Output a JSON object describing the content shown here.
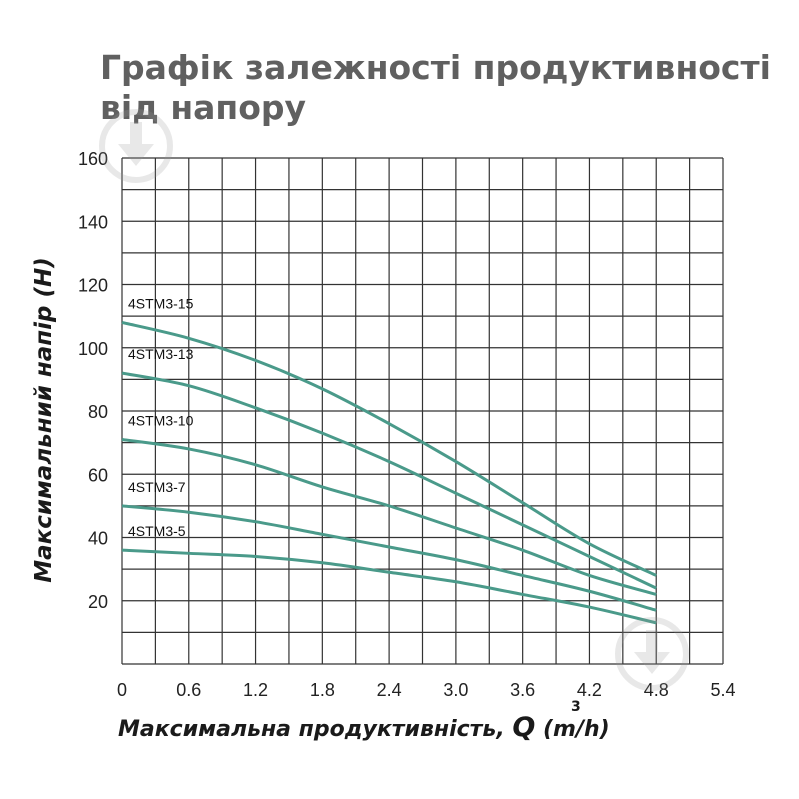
{
  "chart_data": {
    "type": "line",
    "title": "Графік залежності продуктивності від напору",
    "xlabel": "Максимальна продуктивність,",
    "xlabel_symbol": "Q",
    "xlabel_unit": "(m/h)",
    "xlabel_unit_sup": "3",
    "ylabel": "Максимальний напір (Н)",
    "xlim": [
      0,
      5.4
    ],
    "ylim": [
      0,
      160
    ],
    "x_ticks": [
      "0",
      "0.6",
      "1.2",
      "1.8",
      "2.4",
      "3.0",
      "3.6",
      "4.2",
      "4.8",
      "5.4"
    ],
    "y_ticks": [
      "160",
      "140",
      "120",
      "100",
      "80",
      "60",
      "40",
      "20"
    ],
    "y_tick_values": [
      160,
      140,
      120,
      100,
      80,
      60,
      40,
      20
    ],
    "grid": true,
    "grid_x_step": 0.3,
    "grid_y_step": 10,
    "line_color": "#4a9a8a",
    "series": [
      {
        "name": "4STM3-15",
        "x": [
          0,
          0.6,
          1.2,
          1.8,
          2.4,
          3.0,
          3.6,
          4.2,
          4.8
        ],
        "values": [
          108,
          103,
          96,
          87,
          76,
          64,
          51,
          38,
          28
        ]
      },
      {
        "name": "4STM3-13",
        "x": [
          0,
          0.6,
          1.2,
          1.8,
          2.4,
          3.0,
          3.6,
          4.2,
          4.8
        ],
        "values": [
          92,
          88,
          81,
          73,
          64,
          54,
          44,
          34,
          24
        ]
      },
      {
        "name": "4STM3-10",
        "x": [
          0,
          0.6,
          1.2,
          1.8,
          2.4,
          3.0,
          3.6,
          4.2,
          4.8
        ],
        "values": [
          71,
          68,
          63,
          56,
          50,
          43,
          36,
          28,
          22
        ]
      },
      {
        "name": "4STM3-7",
        "x": [
          0,
          0.6,
          1.2,
          1.8,
          2.4,
          3.0,
          3.6,
          4.2,
          4.8
        ],
        "values": [
          50,
          48,
          45,
          41,
          37,
          33,
          28,
          23,
          17
        ]
      },
      {
        "name": "4STM3-5",
        "x": [
          0,
          0.6,
          1.2,
          1.8,
          2.4,
          3.0,
          3.6,
          4.2,
          4.8
        ],
        "values": [
          36,
          35,
          34,
          32,
          29,
          26,
          22,
          18,
          13
        ]
      }
    ]
  },
  "watermark_icon": "download-arrow-circle-icon"
}
